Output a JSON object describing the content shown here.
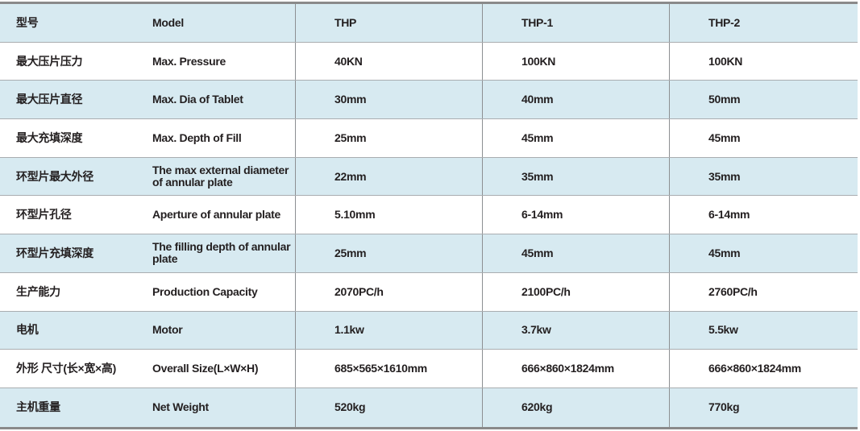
{
  "table": {
    "rows": [
      {
        "zh": "型号",
        "en": "Model",
        "v": [
          "THP",
          "THP-1",
          "THP-2"
        ]
      },
      {
        "zh": "最大压片压力",
        "en": "Max. Pressure",
        "v": [
          "40KN",
          "100KN",
          "100KN"
        ]
      },
      {
        "zh": "最大压片直径",
        "en": "Max. Dia of Tablet",
        "v": [
          "30mm",
          "40mm",
          "50mm"
        ]
      },
      {
        "zh": "最大充填深度",
        "en": "Max. Depth of Fill",
        "v": [
          "25mm",
          "45mm",
          "45mm"
        ]
      },
      {
        "zh": "环型片最大外径",
        "en": "The max external diameter of annular plate",
        "v": [
          "22mm",
          "35mm",
          "35mm"
        ]
      },
      {
        "zh": "环型片孔径",
        "en": "Aperture of annular plate",
        "v": [
          "5.10mm",
          "6-14mm",
          "6-14mm"
        ]
      },
      {
        "zh": "环型片充填深度",
        "en": "The filling depth of annular plate",
        "v": [
          "25mm",
          "45mm",
          "45mm"
        ]
      },
      {
        "zh": "生产能力",
        "en": "Production Capacity",
        "v": [
          "2070PC/h",
          "2100PC/h",
          "2760PC/h"
        ]
      },
      {
        "zh": "电机",
        "en": "Motor",
        "v": [
          "1.1kw",
          "3.7kw",
          "5.5kw"
        ]
      },
      {
        "zh": "外形 尺寸(长×宽×高)",
        "en": "Overall Size(L×W×H)",
        "v": [
          "685×565×1610mm",
          "666×860×1824mm",
          "666×860×1824mm"
        ]
      },
      {
        "zh": "主机重量",
        "en": "Net Weight",
        "v": [
          "520kg",
          "620kg",
          "770kg"
        ]
      }
    ]
  },
  "colors": {
    "row_alt": "#d7eaf1",
    "border": "#8a8a8a",
    "text": "#231f20"
  }
}
